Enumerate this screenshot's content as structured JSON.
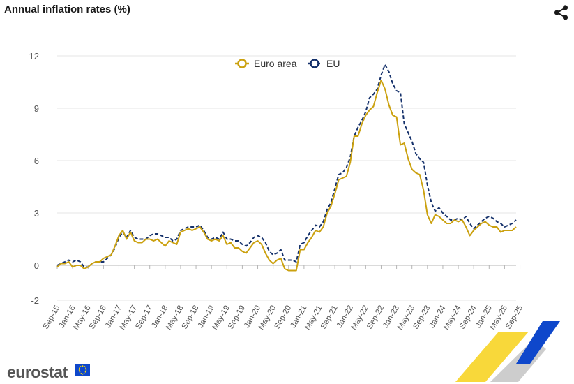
{
  "header": {
    "title": "Annual inflation rates (%)",
    "share_icon": "share-icon"
  },
  "footer": {
    "logo_text": "eurostat",
    "flag_icon": "eu-flag-icon"
  },
  "colors": {
    "euro_area": "#cba10f",
    "eu": "#15316b",
    "grid": "#e6e6e6",
    "axis": "#b5b5b5"
  },
  "chart_data": {
    "type": "line",
    "title": "Annual inflation rates (%)",
    "xlabel": "",
    "ylabel": "",
    "ylim": [
      -2,
      12
    ],
    "yticks": [
      -2,
      0,
      3,
      6,
      9,
      12
    ],
    "grid": true,
    "legend_position": "top-center",
    "x_tick_labels": [
      "Sep-15",
      "Jan-16",
      "May-16",
      "Sep-16",
      "Jan-17",
      "May-17",
      "Sep-17",
      "Jan-18",
      "May-18",
      "Sep-18",
      "Jan-19",
      "May-19",
      "Sep-19",
      "Jan-20",
      "May-20",
      "Sep-20",
      "Jan-21",
      "May-21",
      "Sep-21",
      "Jan-22",
      "May-22",
      "Sep-22",
      "Jan-23",
      "May-23",
      "Sep-23",
      "Jan-24",
      "May-24",
      "Sep-24",
      "Jan-25",
      "May-25",
      "Sep-25"
    ],
    "x_start": "Sep-15",
    "series": [
      {
        "name": "Euro area",
        "style": "solid",
        "color": "#cba10f",
        "values": [
          -0.1,
          0.1,
          0.1,
          0.2,
          -0.1,
          0.0,
          0.0,
          -0.2,
          -0.1,
          0.1,
          0.2,
          0.2,
          0.4,
          0.5,
          0.6,
          1.1,
          1.7,
          2.0,
          1.5,
          1.9,
          1.4,
          1.3,
          1.3,
          1.5,
          1.5,
          1.4,
          1.5,
          1.3,
          1.1,
          1.4,
          1.3,
          1.2,
          1.9,
          2.0,
          2.1,
          2.0,
          2.1,
          2.2,
          1.9,
          1.5,
          1.4,
          1.5,
          1.4,
          1.7,
          1.2,
          1.3,
          1.0,
          1.0,
          0.8,
          0.7,
          1.0,
          1.3,
          1.4,
          1.2,
          0.7,
          0.3,
          0.1,
          0.3,
          0.4,
          -0.2,
          -0.3,
          -0.3,
          -0.3,
          0.9,
          0.9,
          1.3,
          1.6,
          2.0,
          1.9,
          2.2,
          3.0,
          3.4,
          4.1,
          4.9,
          5.0,
          5.1,
          5.9,
          7.4,
          7.4,
          8.1,
          8.6,
          8.9,
          9.1,
          9.9,
          10.6,
          10.1,
          9.2,
          8.6,
          8.5,
          6.9,
          7.0,
          6.1,
          5.5,
          5.3,
          5.2,
          4.3,
          2.9,
          2.4,
          2.9,
          2.8,
          2.6,
          2.4,
          2.4,
          2.6,
          2.5,
          2.6,
          2.2,
          1.7,
          2.0,
          2.2,
          2.4,
          2.5,
          2.3,
          2.2,
          2.2,
          1.9,
          2.0,
          2.0,
          2.0,
          2.2
        ]
      },
      {
        "name": "EU",
        "style": "dashed",
        "color": "#15316b",
        "values": [
          0.0,
          0.1,
          0.2,
          0.3,
          0.2,
          0.3,
          0.2,
          -0.1,
          -0.1,
          0.1,
          0.2,
          0.2,
          0.2,
          0.4,
          0.6,
          1.0,
          1.6,
          1.9,
          1.6,
          2.0,
          1.6,
          1.5,
          1.5,
          1.5,
          1.7,
          1.8,
          1.8,
          1.7,
          1.6,
          1.6,
          1.4,
          1.5,
          2.0,
          2.1,
          2.2,
          2.2,
          2.2,
          2.3,
          2.0,
          1.6,
          1.5,
          1.6,
          1.5,
          1.9,
          1.5,
          1.5,
          1.4,
          1.4,
          1.2,
          1.1,
          1.3,
          1.6,
          1.7,
          1.6,
          1.3,
          0.8,
          0.6,
          0.7,
          0.9,
          0.3,
          0.3,
          0.3,
          0.2,
          1.2,
          1.3,
          1.7,
          2.0,
          2.3,
          2.2,
          2.5,
          3.2,
          3.6,
          4.4,
          5.2,
          5.3,
          5.6,
          6.2,
          7.4,
          7.9,
          8.3,
          8.8,
          9.6,
          9.8,
          10.1,
          10.9,
          11.5,
          11.1,
          10.4,
          10.0,
          9.9,
          8.1,
          7.6,
          7.1,
          6.4,
          6.1,
          5.9,
          4.6,
          3.6,
          3.1,
          3.3,
          3.0,
          2.8,
          2.6,
          2.6,
          2.7,
          2.6,
          2.8,
          2.4,
          2.1,
          2.3,
          2.5,
          2.7,
          2.8,
          2.7,
          2.5,
          2.4,
          2.2,
          2.3,
          2.4,
          2.6
        ]
      }
    ]
  }
}
